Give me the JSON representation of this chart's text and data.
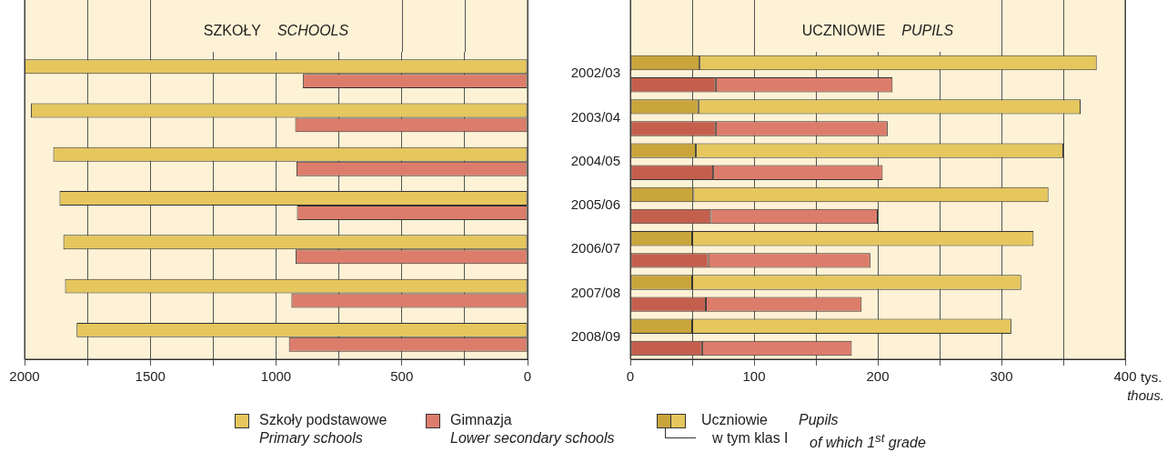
{
  "chart_data": [
    {
      "type": "bar",
      "orientation": "horizontal",
      "title": "SZKOŁY",
      "subtitle": "SCHOOLS",
      "categories": [
        "2002/03",
        "2003/04",
        "2004/05",
        "2005/06",
        "2006/07",
        "2007/08",
        "2008/09"
      ],
      "series": [
        {
          "name": "Szkoły podstawowe\nPrimary schools",
          "color": "#e5c75e",
          "values": [
            2000,
            1975,
            1886,
            1861,
            1846,
            1839,
            1793
          ]
        },
        {
          "name": "Gimnazja\nLower secondary schools",
          "color": "#dc7d6c",
          "values": [
            894,
            924,
            919,
            917,
            922,
            939,
            949
          ]
        }
      ],
      "xlim": [
        2000,
        0
      ],
      "xticks": [
        2000,
        {
          "value": 1750,
          "label": null
        },
        1500,
        {
          "value": 1250,
          "label": null
        },
        1000,
        {
          "value": 750,
          "label": null
        },
        500,
        {
          "value": 250,
          "label": null
        },
        0
      ],
      "grid": "x",
      "legend": "bottom",
      "tick_labels": "x"
    },
    {
      "type": "bar",
      "orientation": "horizontal",
      "stacked": true,
      "title": "UCZNIOWIE",
      "subtitle": "PUPILS",
      "xlabel": "tys. thous.",
      "categories": [
        "2002/03",
        null,
        "2003/04",
        null,
        "2004/05",
        null,
        "2005/06",
        null,
        "2006/07",
        null,
        "2007/08",
        null,
        "2008/09",
        null
      ],
      "series": [
        {
          "colors": [
            "#c9a53c",
            "#c45f4e",
            "#c9a53c",
            "#c45f4e",
            "#c9a53c",
            "#c45f4e",
            "#c9a53c",
            "#c45f4e",
            "#c9a53c",
            "#c45f4e",
            "#c9a53c",
            "#c45f4e",
            "#c9a53c",
            "#c45f4e"
          ],
          "values": [
            56,
            69,
            55,
            69,
            53,
            67,
            51,
            65,
            50,
            63,
            50,
            61,
            50,
            58
          ]
        },
        {
          "colors": [
            "#e5c75e",
            "#dc7d6c",
            "#e5c75e",
            "#dc7d6c",
            "#e5c75e",
            "#dc7d6c",
            "#e5c75e",
            "#dc7d6c",
            "#e5c75e",
            "#dc7d6c",
            "#e5c75e",
            "#dc7d6c",
            "#e5c75e",
            "#dc7d6c"
          ],
          "values": [
            321,
            143,
            309,
            139,
            297,
            137,
            287,
            135,
            276,
            131,
            266,
            126,
            258,
            121
          ]
        }
      ],
      "xlim": [
        0,
        400
      ],
      "xticks": [
        0,
        {
          "value": 50,
          "label": null
        },
        100,
        {
          "value": 150,
          "label": null
        },
        200,
        {
          "value": 250,
          "label": null
        },
        300,
        {
          "value": 350,
          "label": null
        },
        400
      ],
      "grid": "x",
      "legend": false,
      "annotations": [
        "Uczniowie",
        "Pupils",
        "w tym klas I",
        "of which 1$^{st}$ grade"
      ]
    }
  ]
}
